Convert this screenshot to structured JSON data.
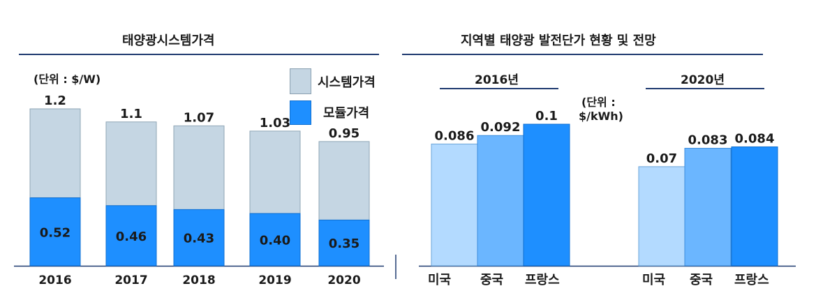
{
  "left_panel": {
    "title": "태양광시스템가격",
    "unit": "(단위 : $/W)",
    "legend": [
      {
        "label": "시스템가격",
        "color": "#c5d6e3"
      },
      {
        "label": "모듈가격",
        "color": "#1e8fff"
      }
    ]
  },
  "right_panel": {
    "title": "지역별 태양광 발전단가 현황 및 전망",
    "unit_line1": "(단위 :",
    "unit_line2": "$/kWh)",
    "group_2016": "2016년",
    "group_2020": "2020년"
  },
  "colors": {
    "system": "#c5d6e3",
    "module": "#1e8fff",
    "usa": "#b3daff",
    "china": "#6bb6ff",
    "france": "#1e8fff",
    "rule": "#1f3a70"
  },
  "chart_data": [
    {
      "type": "bar",
      "title": "태양광시스템가격",
      "ylabel": "(단위 : $/W)",
      "categories": [
        "2016",
        "2017",
        "2018",
        "2019",
        "2020"
      ],
      "series": [
        {
          "name": "시스템가격",
          "values": [
            1.2,
            1.1,
            1.07,
            1.03,
            0.95
          ]
        },
        {
          "name": "모듈가격",
          "values": [
            0.52,
            0.46,
            0.43,
            0.4,
            0.35
          ]
        }
      ],
      "value_labels": {
        "system": [
          "1.2",
          "1.1",
          "1.07",
          "1.03",
          "0.95"
        ],
        "module": [
          "0.52",
          "0.46",
          "0.43",
          "0.40",
          "0.35"
        ]
      },
      "ylim": [
        0,
        1.2
      ]
    },
    {
      "type": "bar",
      "title": "지역별 태양광 발전단가 현황 및 전망",
      "ylabel": "(단위 : $/kWh)",
      "groups": [
        "2016년",
        "2020년"
      ],
      "categories": [
        "미국",
        "중국",
        "프랑스"
      ],
      "series": [
        {
          "name": "2016년",
          "values": [
            0.086,
            0.092,
            0.1
          ],
          "labels": [
            "0.086",
            "0.092",
            "0.1"
          ]
        },
        {
          "name": "2020년",
          "values": [
            0.07,
            0.083,
            0.084
          ],
          "labels": [
            "0.07",
            "0.083",
            "0.084"
          ]
        }
      ],
      "ylim": [
        0,
        0.1
      ]
    }
  ]
}
